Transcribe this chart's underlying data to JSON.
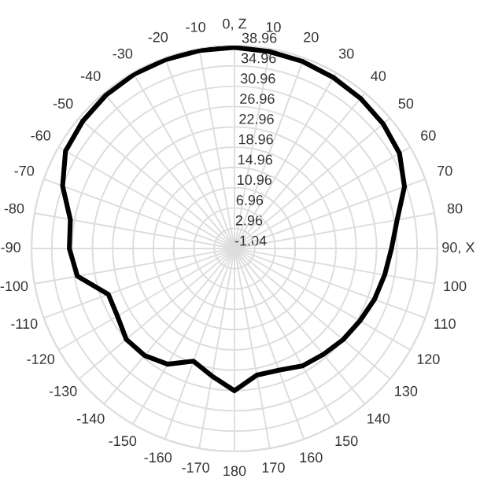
{
  "chart_data": {
    "type": "radar",
    "categories": [
      "0, Z",
      "10",
      "20",
      "30",
      "40",
      "50",
      "60",
      "70",
      "80",
      "90, X",
      "100",
      "110",
      "120",
      "130",
      "140",
      "150",
      "160",
      "170",
      "180",
      "-170",
      "-160",
      "-150",
      "-140",
      "-130",
      "-120",
      "-110",
      "-100",
      "-90",
      "-80",
      "-70",
      "-60",
      "-50",
      "-40",
      "-30",
      "-20",
      "-10"
    ],
    "series": [
      {
        "color": "#000000",
        "marker": "none",
        "values": [
          38.6,
          38.4,
          38.2,
          37.9,
          37.6,
          37.2,
          36.5,
          34.6,
          31.5,
          29.9,
          29,
          28.3,
          27.5,
          26.9,
          26.2,
          25.7,
          24.5,
          24.3,
          27,
          24.5,
          22.6,
          25.3,
          26.5,
          26.8,
          25.6,
          25.4,
          30.4,
          31.5,
          31.8,
          35,
          37.4,
          38,
          38.4,
          38.6,
          38.6,
          38.6
        ]
      }
    ],
    "ylim": [
      -1.04,
      38.96
    ],
    "yticks": [
      -1.04,
      2.96,
      6.96,
      10.96,
      14.96,
      18.96,
      22.96,
      26.96,
      30.96,
      34.96,
      38.96
    ],
    "grid": true
  }
}
